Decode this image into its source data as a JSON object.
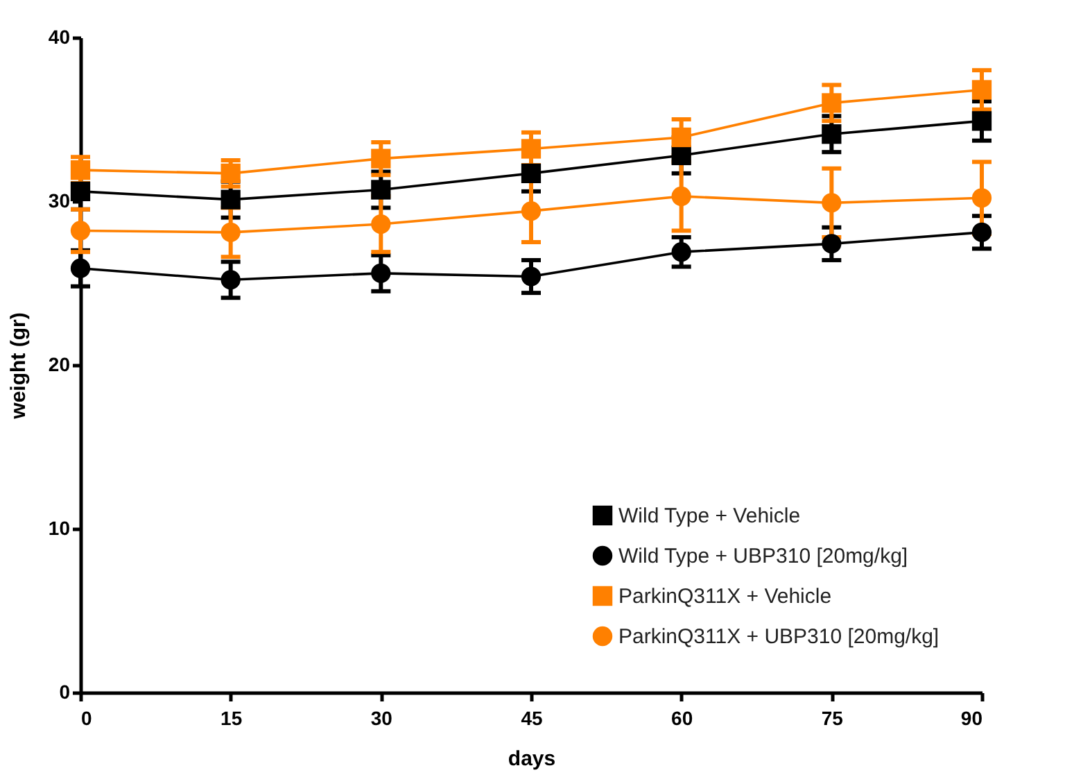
{
  "chart_data": {
    "type": "line",
    "xlabel": "days",
    "ylabel": "weight (gr)",
    "x": [
      0,
      15,
      30,
      45,
      60,
      75,
      90
    ],
    "xlim": [
      0,
      90
    ],
    "xticks": [
      0,
      15,
      30,
      45,
      60,
      75,
      90
    ],
    "ylim": [
      0,
      40
    ],
    "yticks": [
      0,
      10,
      20,
      30,
      40
    ],
    "grid": false,
    "legend": "bottom right",
    "series": [
      {
        "name": "Wild Type + Vehicle",
        "color": "#000000",
        "marker": "square",
        "values": [
          30.6,
          30.1,
          30.7,
          31.7,
          32.8,
          34.1,
          34.9
        ],
        "errors": [
          1.1,
          1.1,
          1.1,
          1.1,
          1.1,
          1.1,
          1.2
        ]
      },
      {
        "name": "Wild Type + UBP310 [20mg/kg]",
        "color": "#000000",
        "marker": "circle",
        "values": [
          25.9,
          25.2,
          25.6,
          25.4,
          26.9,
          27.4,
          28.1
        ],
        "errors": [
          1.1,
          1.1,
          1.1,
          1.0,
          0.9,
          1.0,
          1.0
        ]
      },
      {
        "name": "ParkinQ311X + Vehicle",
        "color": "#ff8000",
        "marker": "square",
        "values": [
          31.9,
          31.7,
          32.6,
          33.2,
          33.9,
          36.0,
          36.8
        ],
        "errors": [
          0.8,
          0.8,
          1.0,
          1.0,
          1.1,
          1.1,
          1.2
        ]
      },
      {
        "name": "ParkinQ311X + UBP310 [20mg/kg]",
        "color": "#ff8000",
        "marker": "circle",
        "values": [
          28.2,
          28.1,
          28.6,
          29.4,
          30.3,
          29.9,
          30.2
        ],
        "errors": [
          1.3,
          1.5,
          1.7,
          1.9,
          2.1,
          2.1,
          2.2
        ]
      }
    ]
  }
}
